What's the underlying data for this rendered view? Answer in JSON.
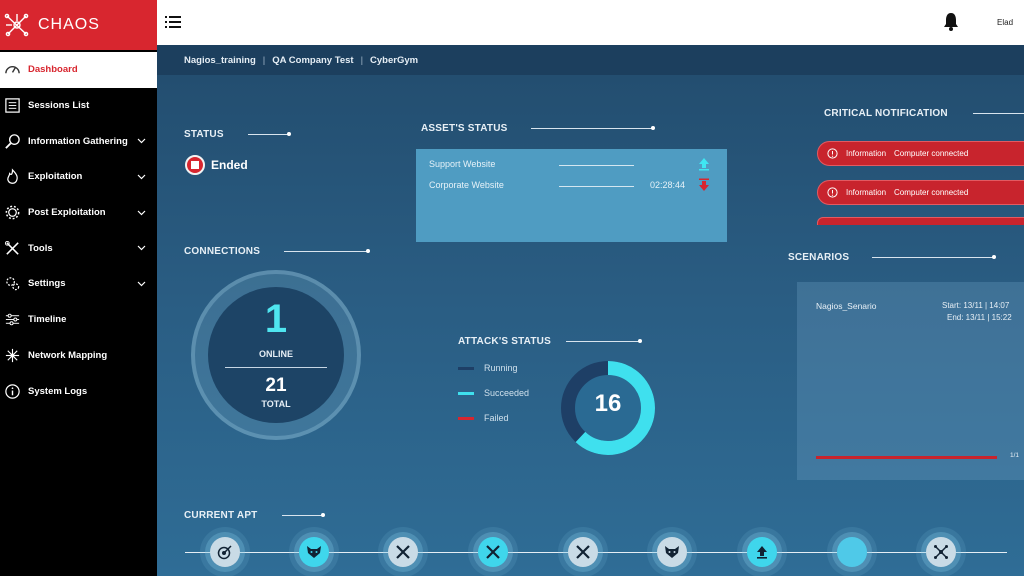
{
  "app": {
    "logo_text": "CHAOS"
  },
  "colors": {
    "accent_red": "#d8262f",
    "cyan": "#3fd6ec",
    "navy": "#1d4466"
  },
  "sidebar": {
    "items": [
      {
        "label": "Dashboard",
        "icon": "gauge-icon",
        "active": true,
        "expandable": false
      },
      {
        "label": "Sessions List",
        "icon": "list-icon",
        "expandable": false
      },
      {
        "label": "Information Gathering",
        "icon": "magnifier-icon",
        "expandable": true
      },
      {
        "label": "Exploitation",
        "icon": "fire-icon",
        "expandable": true
      },
      {
        "label": "Post Exploitation",
        "icon": "gear-icon",
        "expandable": true
      },
      {
        "label": "Tools",
        "icon": "tools-icon",
        "expandable": true
      },
      {
        "label": "Settings",
        "icon": "gears-icon",
        "expandable": true
      },
      {
        "label": "Timeline",
        "icon": "sliders-icon",
        "expandable": false
      },
      {
        "label": "Network Mapping",
        "icon": "network-icon",
        "expandable": false
      },
      {
        "label": "System Logs",
        "icon": "info-icon",
        "expandable": false
      }
    ]
  },
  "header": {
    "user_name": "Elad"
  },
  "breadcrumb": [
    "Nagios_training",
    "QA Company Test",
    "CyberGym"
  ],
  "status": {
    "title": "STATUS",
    "value": "Ended"
  },
  "asset_status": {
    "title": "ASSET'S STATUS",
    "assets": [
      {
        "name": "Support Website",
        "time": "",
        "direction": "up"
      },
      {
        "name": "Corporate Website",
        "time": "02:28:44",
        "direction": "down"
      }
    ]
  },
  "critical_notification": {
    "title": "CRITICAL NOTIFICATION",
    "items": [
      {
        "type": "Information",
        "message": "Computer connected"
      },
      {
        "type": "Information",
        "message": "Computer connected"
      }
    ]
  },
  "connections": {
    "title": "CONNECTIONS",
    "online": "1",
    "online_label": "ONLINE",
    "total": "21",
    "total_label": "TOTAL"
  },
  "attack_status": {
    "title": "ATTACK'S STATUS",
    "total": "16",
    "legend": [
      {
        "label": "Running",
        "color": "#1e3f66"
      },
      {
        "label": "Succeeded",
        "color": "#3fe0ee"
      },
      {
        "label": "Failed",
        "color": "#d8262f"
      }
    ],
    "succeeded_fraction": 0.62
  },
  "scenarios": {
    "title": "SCENARIOS",
    "name": "Nagios_Senario",
    "start": "Start: 13/11 | 14:07",
    "end": "End: 13/11 | 15:22",
    "pager": "1/1"
  },
  "current_apt": {
    "title": "CURRENT APT",
    "steps": [
      {
        "icon": "target-icon",
        "state": "done"
      },
      {
        "icon": "fox-icon",
        "state": "active"
      },
      {
        "icon": "tools-icon",
        "state": "done"
      },
      {
        "icon": "tools-icon",
        "state": "active"
      },
      {
        "icon": "tools-icon",
        "state": "done"
      },
      {
        "icon": "fox-icon",
        "state": "done"
      },
      {
        "icon": "upload-icon",
        "state": "active"
      },
      {
        "icon": "empty-icon",
        "state": "pending"
      },
      {
        "icon": "network-icon",
        "state": "done"
      }
    ]
  }
}
